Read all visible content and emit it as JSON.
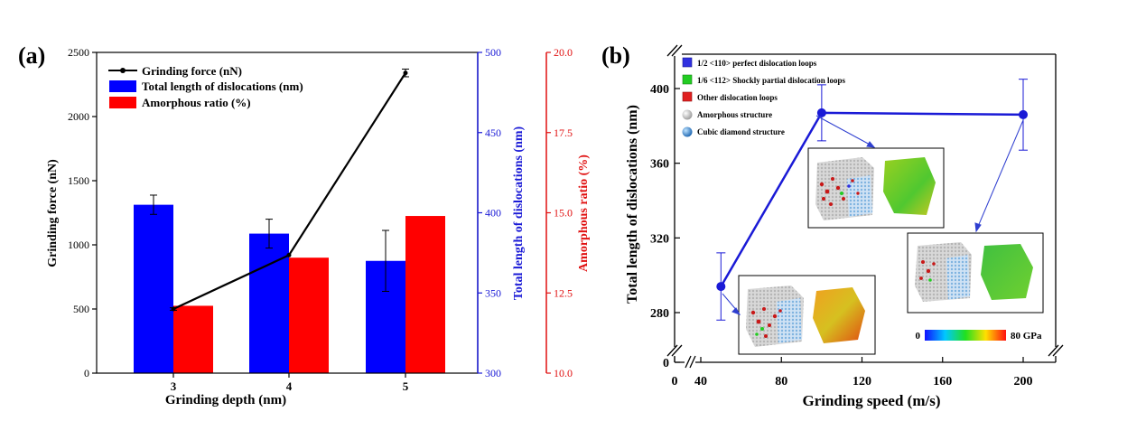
{
  "chart_data": [
    {
      "type": "bar",
      "panel_label": "(a)",
      "categories": [
        "3",
        "4",
        "5"
      ],
      "xlabel": "Grinding depth (nm)",
      "axes": {
        "left": {
          "label": "Grinding force (nN)",
          "range": [
            0,
            2500
          ],
          "ticks": [
            "0",
            "500",
            "1000",
            "1500",
            "2000",
            "2500"
          ],
          "color": "#000000"
        },
        "right1": {
          "label": "Total length of dislocations (nm)",
          "range": [
            300,
            500
          ],
          "ticks": [
            "300",
            "350",
            "400",
            "450",
            "500"
          ],
          "color": "#1a1ad6"
        },
        "right2": {
          "label": "Amorphous ratio (%)",
          "range": [
            10.0,
            20.0
          ],
          "ticks": [
            "10.0",
            "12.5",
            "15.0",
            "17.5",
            "20.0"
          ],
          "color": "#e01010"
        }
      },
      "series": [
        {
          "name": "Grinding force (nN)",
          "kind": "line",
          "axis": "left",
          "color": "#000000",
          "values": [
            500,
            920,
            2340
          ],
          "errors": [
            10,
            0,
            30
          ]
        },
        {
          "name": "Total length of dislocations (nm)",
          "kind": "bar",
          "axis": "right1",
          "color": "#0000ff",
          "values": [
            405,
            387,
            370
          ],
          "errors": [
            6,
            9,
            19
          ]
        },
        {
          "name": "Amorphous ratio (%)",
          "kind": "bar",
          "axis": "right2",
          "color": "#ff0000",
          "values": [
            12.1,
            13.6,
            14.9
          ]
        }
      ],
      "legend_position": "top-left"
    },
    {
      "type": "line",
      "panel_label": "(b)",
      "xlabel": "Grinding speed (m/s)",
      "ylabel": "Total length of dislocations (nm)",
      "x_ticks": [
        "0",
        "40",
        "80",
        "120",
        "160",
        "200"
      ],
      "y_ticks": [
        "0",
        "280",
        "320",
        "360",
        "400"
      ],
      "axis_breaks": true,
      "series": [
        {
          "color": "#1a1ad6",
          "x": [
            50,
            100,
            200
          ],
          "y": [
            294,
            387,
            386
          ],
          "errors": [
            18,
            15,
            19
          ]
        }
      ],
      "legend": [
        {
          "label": "1/2 <110> perfect dislocation loops",
          "icon": "blue-square",
          "color": "#3030e0"
        },
        {
          "label": "1/6 <112> Shockly partial dislocation loops",
          "icon": "green-square",
          "color": "#22cc22"
        },
        {
          "label": "Other dislocation loops",
          "icon": "red-square",
          "color": "#e02020"
        },
        {
          "label": "Amorphous structure",
          "icon": "gray-sphere",
          "color": "#cfcfcf"
        },
        {
          "label": "Cubic diamond structure",
          "icon": "blue-sphere",
          "color": "#3b8fd8"
        }
      ],
      "legend_position": "top-left",
      "colorbar": {
        "min_label": "0",
        "max_label": "80 GPa"
      }
    }
  ]
}
